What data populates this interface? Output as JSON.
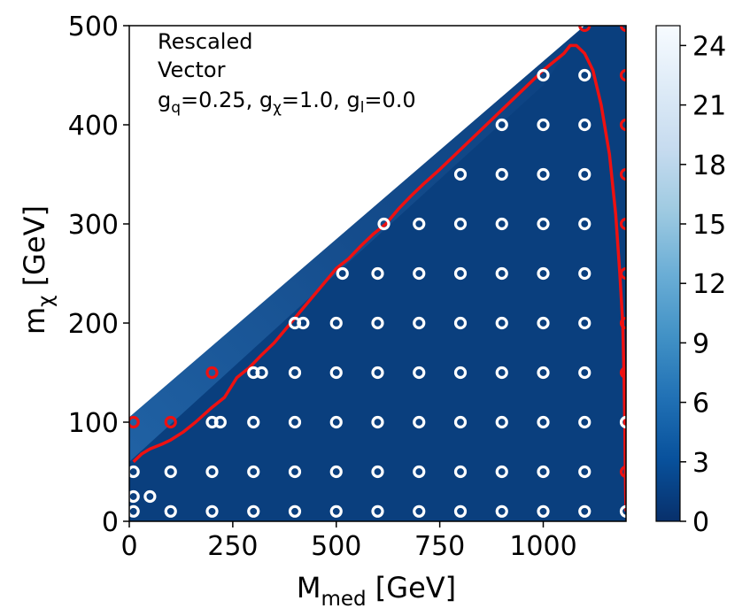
{
  "chart_data": {
    "type": "heatmap",
    "annotation": {
      "line1": "Rescaled",
      "line2": "Vector",
      "line3": "g_q=0.25, g_χ=1.0, g_l=0.0"
    },
    "xlabel": "M_med [GeV]",
    "ylabel": "m_χ [GeV]",
    "xlim": [
      0,
      1200
    ],
    "ylim": [
      0,
      500
    ],
    "xticks": [
      0,
      250,
      500,
      750,
      1000
    ],
    "yticks": [
      0,
      100,
      200,
      300,
      400,
      500
    ],
    "colorbar": {
      "min": 0,
      "max": 25,
      "ticks": [
        0,
        3,
        6,
        9,
        12,
        15,
        18,
        21,
        24
      ],
      "colormap": "Blues_r"
    },
    "colors": {
      "fill_low": "#0a3f7e",
      "fill_mid": "#1b5a9b",
      "contour": "#ee1111",
      "excluded_marker": "#ffffff",
      "allowed_marker": "#ee1111"
    },
    "region_vertices": [
      [
        0,
        10
      ],
      [
        0,
        105
      ],
      [
        1100,
        500
      ],
      [
        1200,
        500
      ],
      [
        1200,
        0
      ],
      [
        0,
        0
      ]
    ],
    "contour_line": [
      [
        10,
        60
      ],
      [
        30,
        68
      ],
      [
        50,
        73
      ],
      [
        80,
        78
      ],
      [
        100,
        82
      ],
      [
        130,
        90
      ],
      [
        160,
        100
      ],
      [
        200,
        115
      ],
      [
        230,
        125
      ],
      [
        260,
        145
      ],
      [
        290,
        155
      ],
      [
        320,
        168
      ],
      [
        350,
        180
      ],
      [
        380,
        195
      ],
      [
        410,
        210
      ],
      [
        440,
        225
      ],
      [
        470,
        240
      ],
      [
        500,
        255
      ],
      [
        530,
        265
      ],
      [
        560,
        278
      ],
      [
        590,
        290
      ],
      [
        620,
        300
      ],
      [
        650,
        315
      ],
      [
        680,
        328
      ],
      [
        710,
        340
      ],
      [
        750,
        355
      ],
      [
        800,
        375
      ],
      [
        850,
        395
      ],
      [
        900,
        415
      ],
      [
        950,
        435
      ],
      [
        1000,
        455
      ],
      [
        1050,
        472
      ],
      [
        1065,
        480
      ],
      [
        1080,
        480
      ],
      [
        1100,
        472
      ],
      [
        1120,
        455
      ],
      [
        1140,
        420
      ],
      [
        1160,
        370
      ],
      [
        1175,
        310
      ],
      [
        1185,
        250
      ],
      [
        1192,
        200
      ],
      [
        1195,
        150
      ],
      [
        1197,
        100
      ],
      [
        1198,
        60
      ],
      [
        1199,
        30
      ],
      [
        1200,
        10
      ]
    ],
    "excluded_points": [
      [
        10,
        10
      ],
      [
        100,
        10
      ],
      [
        200,
        10
      ],
      [
        300,
        10
      ],
      [
        400,
        10
      ],
      [
        500,
        10
      ],
      [
        600,
        10
      ],
      [
        700,
        10
      ],
      [
        800,
        10
      ],
      [
        900,
        10
      ],
      [
        1000,
        10
      ],
      [
        1100,
        10
      ],
      [
        1200,
        10
      ],
      [
        10,
        25
      ],
      [
        50,
        25
      ],
      [
        10,
        50
      ],
      [
        100,
        50
      ],
      [
        200,
        50
      ],
      [
        300,
        50
      ],
      [
        400,
        50
      ],
      [
        500,
        50
      ],
      [
        600,
        50
      ],
      [
        700,
        50
      ],
      [
        800,
        50
      ],
      [
        900,
        50
      ],
      [
        1000,
        50
      ],
      [
        1100,
        50
      ],
      [
        200,
        100
      ],
      [
        220,
        100
      ],
      [
        300,
        100
      ],
      [
        400,
        100
      ],
      [
        500,
        100
      ],
      [
        600,
        100
      ],
      [
        700,
        100
      ],
      [
        800,
        100
      ],
      [
        900,
        100
      ],
      [
        1000,
        100
      ],
      [
        1100,
        100
      ],
      [
        1200,
        100
      ],
      [
        300,
        150
      ],
      [
        320,
        150
      ],
      [
        400,
        150
      ],
      [
        500,
        150
      ],
      [
        600,
        150
      ],
      [
        700,
        150
      ],
      [
        800,
        150
      ],
      [
        900,
        150
      ],
      [
        1000,
        150
      ],
      [
        1100,
        150
      ],
      [
        400,
        200
      ],
      [
        420,
        200
      ],
      [
        500,
        200
      ],
      [
        600,
        200
      ],
      [
        700,
        200
      ],
      [
        800,
        200
      ],
      [
        900,
        200
      ],
      [
        1000,
        200
      ],
      [
        1100,
        200
      ],
      [
        515,
        250
      ],
      [
        600,
        250
      ],
      [
        700,
        250
      ],
      [
        800,
        250
      ],
      [
        900,
        250
      ],
      [
        1000,
        250
      ],
      [
        1100,
        250
      ],
      [
        615,
        300
      ],
      [
        700,
        300
      ],
      [
        800,
        300
      ],
      [
        900,
        300
      ],
      [
        1000,
        300
      ],
      [
        1100,
        300
      ],
      [
        800,
        350
      ],
      [
        900,
        350
      ],
      [
        1000,
        350
      ],
      [
        1100,
        350
      ],
      [
        900,
        400
      ],
      [
        1000,
        400
      ],
      [
        1100,
        400
      ],
      [
        1000,
        450
      ],
      [
        1100,
        450
      ]
    ],
    "allowed_points": [
      [
        10,
        100
      ],
      [
        100,
        100
      ],
      [
        200,
        150
      ],
      [
        1100,
        500
      ],
      [
        1200,
        500
      ],
      [
        1200,
        450
      ],
      [
        1200,
        400
      ],
      [
        1200,
        350
      ],
      [
        1200,
        300
      ],
      [
        1200,
        250
      ],
      [
        1200,
        200
      ],
      [
        1200,
        150
      ],
      [
        1200,
        50
      ]
    ]
  }
}
